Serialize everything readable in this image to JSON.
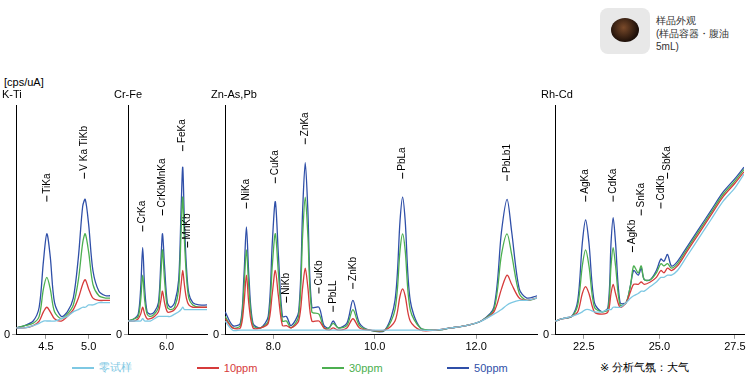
{
  "y_label": "[cps/uA]",
  "caption": [
    "样品外观",
    "(样品容器・腹油5mL)"
  ],
  "note": "※ 分析气氛：大气",
  "legend": "bottom",
  "chart_data": [
    {
      "type": "line",
      "title": "K-Ti",
      "x": [
        4.15,
        4.25,
        4.35,
        4.42,
        4.47,
        4.51,
        4.55,
        4.6,
        4.68,
        4.75,
        4.82,
        4.88,
        4.93,
        4.96,
        5.0,
        5.05,
        5.12,
        5.2,
        5.25
      ],
      "series": [
        {
          "name": "零试样",
          "color": "#7ec8e3",
          "values": [
            3,
            3,
            4,
            5,
            6,
            6,
            6,
            6,
            7,
            8,
            10,
            11,
            12,
            12,
            13,
            13,
            14,
            14,
            14
          ]
        },
        {
          "name": "10ppm",
          "color": "#d63b3b",
          "values": [
            3,
            3,
            4,
            6,
            10,
            12,
            10,
            7,
            6,
            8,
            11,
            16,
            22,
            24,
            20,
            16,
            15,
            15,
            15
          ]
        },
        {
          "name": "30ppm",
          "color": "#4caf50",
          "values": [
            3,
            4,
            5,
            8,
            20,
            25,
            20,
            10,
            7,
            9,
            13,
            24,
            40,
            44,
            36,
            22,
            17,
            16,
            16
          ]
        },
        {
          "name": "50ppm",
          "color": "#2f4fa8",
          "values": [
            3,
            4,
            6,
            12,
            32,
            44,
            34,
            14,
            8,
            10,
            16,
            34,
            56,
            59,
            48,
            28,
            19,
            17,
            17
          ]
        }
      ],
      "xlim": [
        4.15,
        5.25
      ],
      "xticks": [
        4.5,
        {
          "value": 5,
          "label": "5.0"
        }
      ],
      "ylim": [
        0,
        100
      ],
      "yticks": [
        0
      ],
      "grid": false,
      "annotations": [
        {
          "text": "TiKa",
          "x": 4.51,
          "y": 58
        },
        {
          "text": "V Ka TiKb",
          "x": 4.95,
          "y": 68
        }
      ]
    },
    {
      "type": "line",
      "title": "Cr-Fe",
      "x": [
        5.05,
        5.2,
        5.3,
        5.36,
        5.41,
        5.46,
        5.52,
        5.6,
        5.7,
        5.8,
        5.86,
        5.9,
        5.95,
        6.02,
        6.1,
        6.2,
        6.3,
        6.36,
        6.4,
        6.44,
        6.49,
        6.55,
        6.65,
        6.8,
        7.0
      ],
      "series": [
        {
          "name": "零试样",
          "color": "#7ec8e3",
          "values": [
            6,
            6,
            6,
            6,
            7,
            6,
            6,
            6,
            7,
            8,
            8,
            8,
            8,
            8,
            8,
            9,
            10,
            11,
            12,
            11,
            11,
            11,
            11,
            11,
            11
          ]
        },
        {
          "name": "10ppm",
          "color": "#d63b3b",
          "values": [
            6,
            6,
            7,
            9,
            12,
            9,
            7,
            7,
            8,
            10,
            15,
            19,
            14,
            10,
            10,
            11,
            14,
            22,
            28,
            22,
            16,
            13,
            12,
            12,
            12
          ]
        },
        {
          "name": "30ppm",
          "color": "#4caf50",
          "values": [
            6,
            7,
            8,
            15,
            26,
            15,
            9,
            8,
            9,
            12,
            26,
            37,
            24,
            12,
            11,
            12,
            20,
            45,
            60,
            42,
            26,
            16,
            13,
            12,
            12
          ]
        },
        {
          "name": "50ppm",
          "color": "#2f4fa8",
          "values": [
            6,
            7,
            9,
            20,
            38,
            20,
            10,
            9,
            10,
            14,
            32,
            44,
            30,
            14,
            12,
            14,
            24,
            55,
            73,
            50,
            30,
            18,
            14,
            13,
            13
          ]
        }
      ],
      "xlim": [
        5.05,
        7.0
      ],
      "xticks": [
        {
          "value": 6,
          "label": "6.0"
        }
      ],
      "ylim": [
        0,
        100
      ],
      "yticks": [
        0
      ],
      "grid": false,
      "annotations": [
        {
          "text": "CrKa",
          "x": 5.41,
          "y": 45
        },
        {
          "text": "CrKbMnKa",
          "x": 5.9,
          "y": 52
        },
        {
          "text": "FeKa",
          "x": 6.4,
          "y": 80
        },
        {
          "text": "MnKb",
          "x": 6.52,
          "y": 38
        }
      ]
    },
    {
      "type": "line",
      "title": "Zn-As,Pb",
      "x": [
        7.05,
        7.2,
        7.35,
        7.42,
        7.47,
        7.52,
        7.6,
        7.75,
        7.9,
        7.98,
        8.04,
        8.1,
        8.18,
        8.26,
        8.35,
        8.5,
        8.58,
        8.63,
        8.68,
        8.76,
        8.9,
        9.0,
        9.1,
        9.18,
        9.28,
        9.45,
        9.57,
        9.7,
        9.9,
        10.2,
        10.4,
        10.5,
        10.55,
        10.6,
        10.7,
        10.9,
        11.2,
        11.5,
        11.8,
        12.1,
        12.35,
        12.5,
        12.61,
        12.7,
        12.85,
        13.0,
        13.2
      ],
      "series": [
        {
          "name": "零试样",
          "color": "#7ec8e3",
          "values": [
            6,
            2,
            2,
            2,
            2,
            2,
            2,
            2,
            2,
            2,
            2,
            2,
            2,
            2,
            2,
            2,
            2,
            2,
            2,
            2,
            2,
            2,
            2,
            2,
            2,
            2,
            2,
            2,
            2,
            2,
            2,
            2,
            2,
            2,
            2,
            2,
            2,
            3,
            4,
            6,
            9,
            11,
            13,
            14,
            15,
            15,
            16
          ]
        },
        {
          "name": "10ppm",
          "color": "#d63b3b",
          "values": [
            7,
            3,
            3,
            13,
            26,
            13,
            3,
            3,
            5,
            18,
            28,
            17,
            4,
            4,
            3,
            6,
            21,
            29,
            21,
            6,
            6,
            3,
            2,
            3,
            2,
            3,
            7,
            3,
            2,
            2,
            6,
            17,
            20,
            17,
            6,
            2,
            2,
            3,
            4,
            6,
            10,
            20,
            26,
            22,
            16,
            15,
            16
          ]
        },
        {
          "name": "30ppm",
          "color": "#4caf50",
          "values": [
            8,
            3,
            4,
            20,
            37,
            20,
            4,
            3,
            6,
            30,
            44,
            27,
            6,
            6,
            3,
            8,
            44,
            60,
            44,
            10,
            9,
            3,
            3,
            5,
            3,
            4,
            11,
            4,
            2,
            2,
            11,
            37,
            44,
            37,
            11,
            3,
            2,
            3,
            4,
            6,
            11,
            35,
            44,
            35,
            18,
            15,
            16
          ]
        },
        {
          "name": "50ppm",
          "color": "#2f4fa8",
          "values": [
            10,
            4,
            5,
            25,
            47,
            25,
            5,
            3,
            8,
            40,
            58,
            35,
            8,
            8,
            4,
            10,
            55,
            75,
            55,
            12,
            12,
            4,
            3,
            6,
            3,
            5,
            15,
            5,
            2,
            2,
            15,
            50,
            60,
            50,
            15,
            3,
            2,
            3,
            4,
            6,
            12,
            45,
            59,
            45,
            20,
            16,
            17
          ]
        }
      ],
      "xlim": [
        7.05,
        13.2
      ],
      "xticks": [
        {
          "value": 8,
          "label": "8.0"
        },
        {
          "value": 10,
          "label": "10.0"
        },
        {
          "value": 12,
          "label": "12.0"
        }
      ],
      "ylim": [
        0,
        100
      ],
      "yticks": [
        0
      ],
      "grid": false,
      "annotations": [
        {
          "text": "NiKa",
          "x": 7.47,
          "y": 55
        },
        {
          "text": "CuKa",
          "x": 8.04,
          "y": 66
        },
        {
          "text": "NiKb",
          "x": 8.26,
          "y": 14
        },
        {
          "text": "ZnKa",
          "x": 8.63,
          "y": 83
        },
        {
          "text": "CuKb",
          "x": 8.9,
          "y": 18
        },
        {
          "text": "PbLL",
          "x": 9.18,
          "y": 10
        },
        {
          "text": "ZnKb",
          "x": 9.57,
          "y": 20
        },
        {
          "text": "PbLa",
          "x": 10.55,
          "y": 68
        },
        {
          "text": "PbLb1",
          "x": 12.61,
          "y": 67
        }
      ]
    },
    {
      "type": "line",
      "title": "Rh-Cd",
      "x": [
        21.55,
        21.8,
        22.1,
        22.3,
        22.45,
        22.56,
        22.67,
        22.85,
        23.1,
        23.3,
        23.4,
        23.47,
        23.55,
        23.7,
        23.9,
        24.05,
        24.15,
        24.3,
        24.4,
        24.5,
        24.7,
        24.9,
        25.05,
        25.15,
        25.27,
        25.4,
        25.6,
        25.9,
        26.3,
        26.7,
        27.1,
        27.5,
        27.8
      ],
      "series": [
        {
          "name": "零试样",
          "color": "#7ec8e3",
          "values": [
            6,
            7,
            8,
            9,
            10,
            11,
            11,
            10,
            10,
            11,
            11,
            12,
            12,
            12,
            14,
            16,
            17,
            18,
            19,
            19,
            21,
            23,
            25,
            25,
            26,
            26,
            28,
            34,
            42,
            50,
            58,
            64,
            70
          ]
        },
        {
          "name": "10ppm",
          "color": "#d63b3b",
          "values": [
            6,
            7,
            8,
            10,
            18,
            21,
            18,
            10,
            9,
            10,
            18,
            22,
            18,
            12,
            14,
            19,
            22,
            22,
            23,
            22,
            23,
            25,
            28,
            27,
            29,
            28,
            30,
            36,
            44,
            52,
            60,
            66,
            71
          ]
        },
        {
          "name": "30ppm",
          "color": "#4caf50",
          "values": [
            6,
            7,
            8,
            13,
            30,
            37,
            30,
            12,
            10,
            11,
            30,
            38,
            30,
            13,
            14,
            22,
            30,
            27,
            30,
            24,
            24,
            27,
            31,
            30,
            31,
            29,
            31,
            37,
            45,
            53,
            61,
            67,
            72
          ]
        },
        {
          "name": "50ppm",
          "color": "#2f4fa8",
          "values": [
            6,
            7,
            8,
            15,
            40,
            50,
            40,
            14,
            10,
            12,
            40,
            51,
            40,
            14,
            14,
            22,
            28,
            26,
            29,
            24,
            24,
            28,
            33,
            32,
            35,
            30,
            32,
            38,
            46,
            54,
            62,
            68,
            73
          ]
        }
      ],
      "xlim": [
        21.55,
        27.8
      ],
      "xticks": [
        22.5,
        {
          "value": 25,
          "label": "25.0"
        },
        27.5
      ],
      "ylim": [
        0,
        100
      ],
      "yticks": [
        0
      ],
      "grid": false,
      "annotations": [
        {
          "text": "AgKa",
          "x": 22.56,
          "y": 58
        },
        {
          "text": "CdKa",
          "x": 23.47,
          "y": 58
        },
        {
          "text": "AgKb",
          "x": 24.11,
          "y": 36
        },
        {
          "text": "SnKa",
          "x": 24.4,
          "y": 52
        },
        {
          "text": "CdKb",
          "x": 25.05,
          "y": 55
        },
        {
          "text": "SbKa",
          "x": 25.27,
          "y": 68
        }
      ]
    }
  ]
}
